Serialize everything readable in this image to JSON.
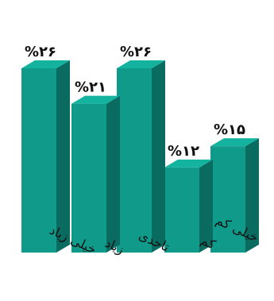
{
  "chart_data": {
    "type": "bar",
    "style": "3d-column",
    "categories": [
      "خیلی زیاد",
      "زیاد",
      "تاحدی",
      "کم",
      "خیلی کم"
    ],
    "values": [
      26,
      21,
      26,
      12,
      15
    ],
    "value_labels": [
      "%۲۶",
      "%۲۱",
      "%۲۶",
      "%۱۲",
      "%۱۵"
    ],
    "unit": "%",
    "ylim": [
      0,
      26
    ],
    "grid": false,
    "legend": "none",
    "colors": {
      "front": "#0f9a8a",
      "side": "#0a6b60",
      "top": "#13b3a0",
      "text": "#111111"
    }
  }
}
